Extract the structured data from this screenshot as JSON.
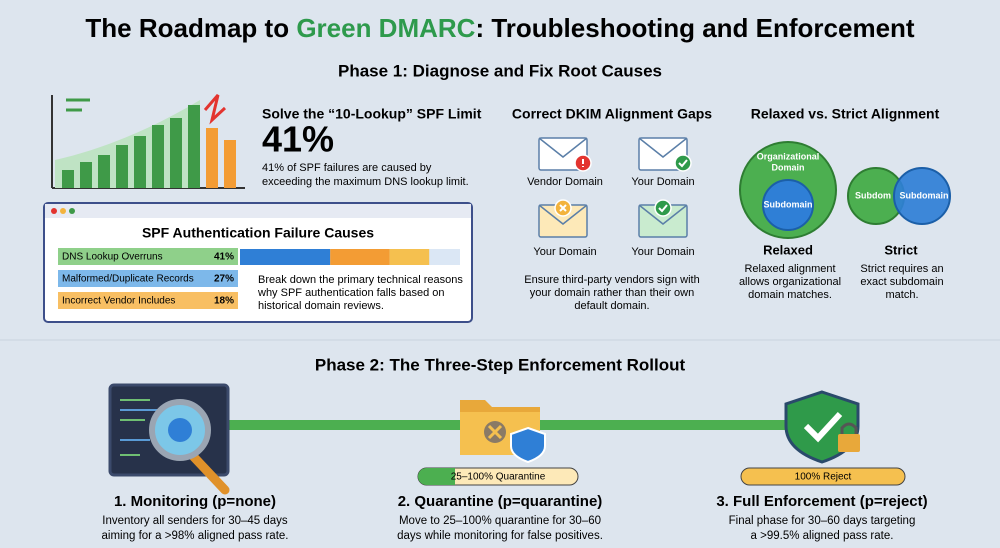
{
  "header": {
    "title_pre": "The Roadmap to ",
    "title_green": "Green DMARC",
    "title_post": ": Troubleshooting and Enforcement"
  },
  "phase1": {
    "heading": "Phase 1: Diagnose and Fix Root Causes",
    "spf": {
      "heading": "Solve the “10-Lookup” SPF Limit",
      "stat": "41%",
      "desc": [
        "41% of SPF failures are caused by",
        "exceeding the maximum DNS lookup limit."
      ]
    },
    "panel": {
      "title": "SPF Authentication Failure Causes",
      "rows": [
        {
          "label": "DNS Lookup Overruns",
          "value": 41,
          "value_label": "41%"
        },
        {
          "label": "Malformed/Duplicate Records",
          "value": 27,
          "value_label": "27%"
        },
        {
          "label": "Incorrect Vendor Includes",
          "value": 18,
          "value_label": "18%"
        }
      ],
      "desc": [
        "Break down the primary technical reasons",
        "why SPF authentication falls based on",
        "historical domain reviews."
      ]
    },
    "dkim": {
      "heading": "Correct DKIM Alignment Gaps",
      "labels": [
        "Vendor Domain",
        "Your Domain",
        "Your Domain",
        "Your Domain"
      ],
      "desc": [
        "Ensure third-party vendors sign with",
        "your domain rather than their own",
        "default domain."
      ]
    },
    "alignment": {
      "heading": "Relaxed vs. Strict Alignment",
      "relaxed": {
        "outer": [
          "Organizational",
          "Domain"
        ],
        "inner": "Subdomain",
        "title": "Relaxed",
        "desc": [
          "Relaxed alignment",
          "allows organizational",
          "domain matches."
        ]
      },
      "strict": {
        "left": "Subdom",
        "right": "Subdomain",
        "title": "Strict",
        "desc": [
          "Strict requires an",
          "exact subdomain",
          "match."
        ]
      }
    }
  },
  "phase2": {
    "heading": "Phase 2: The Three-Step Enforcement Rollout",
    "steps": [
      {
        "title": "1. Monitoring (p=none)",
        "desc": [
          "Inventory all senders for 30–45 days",
          "aiming for a >98% aligned pass rate."
        ]
      },
      {
        "pill": "25–100% Quarantine",
        "title": "2. Quarantine (p=quarantine)",
        "desc": [
          "Move to 25–100% quarantine for 30–60",
          "days while monitoring for false positives."
        ]
      },
      {
        "pill": "100% Reject",
        "title": "3. Full Enforcement (p=reject)",
        "desc": [
          "Final phase for 30–60 days targeting",
          "a >99.5% aligned pass rate."
        ]
      }
    ]
  }
}
